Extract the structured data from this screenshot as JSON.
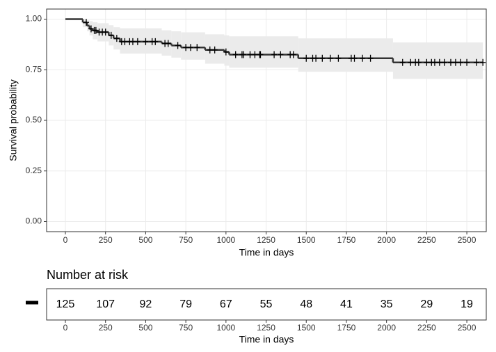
{
  "chart_data": [
    {
      "type": "step",
      "xlabel": "Time in days",
      "ylabel": "Survival probability",
      "color": "#333333",
      "band_color": "#ebebeb",
      "grid": true,
      "x": [
        0,
        108,
        135,
        150,
        170,
        200,
        270,
        300,
        340,
        600,
        660,
        720,
        870,
        990,
        1020,
        1450,
        2040
      ],
      "y": [
        1.0,
        0.984,
        0.968,
        0.952,
        0.944,
        0.936,
        0.92,
        0.905,
        0.889,
        0.88,
        0.87,
        0.86,
        0.848,
        0.838,
        0.825,
        0.807,
        0.786
      ],
      "lower": [
        1.0,
        0.96,
        0.94,
        0.92,
        0.9,
        0.89,
        0.87,
        0.85,
        0.83,
        0.82,
        0.81,
        0.8,
        0.78,
        0.77,
        0.76,
        0.74,
        0.705
      ],
      "upper": [
        1.0,
        1.0,
        0.995,
        0.99,
        0.985,
        0.98,
        0.97,
        0.96,
        0.955,
        0.945,
        0.94,
        0.935,
        0.925,
        0.92,
        0.915,
        0.905,
        0.885
      ],
      "censor_x": [
        130,
        160,
        180,
        190,
        210,
        230,
        250,
        285,
        320,
        350,
        370,
        400,
        420,
        450,
        500,
        540,
        560,
        620,
        640,
        700,
        750,
        780,
        820,
        900,
        930,
        1000,
        1060,
        1100,
        1110,
        1150,
        1180,
        1210,
        1215,
        1300,
        1340,
        1400,
        1420,
        1500,
        1540,
        1560,
        1600,
        1650,
        1700,
        1780,
        1800,
        1850,
        1900,
        2100,
        2150,
        2180,
        2200,
        2250,
        2280,
        2300,
        2330,
        2360,
        2400,
        2430,
        2460,
        2500,
        2560,
        2600
      ],
      "xlim": [
        -117,
        2621
      ],
      "ylim": [
        -0.05,
        1.05
      ],
      "xticks": [
        0,
        250,
        500,
        750,
        1000,
        1250,
        1500,
        1750,
        2000,
        2250,
        2500
      ],
      "yticks": [
        {
          "value": 0,
          "label": "0.00"
        },
        {
          "value": 0.25,
          "label": "0.25"
        },
        {
          "value": 0.5,
          "label": "0.50"
        },
        {
          "value": 0.75,
          "label": "0.75"
        },
        {
          "value": 1,
          "label": "1.00"
        }
      ]
    },
    {
      "type": "risk_table",
      "title": "Number at risk",
      "xlabel": "Time in days",
      "x": [
        0,
        250,
        500,
        750,
        1000,
        1250,
        1500,
        1750,
        2000,
        2250,
        2500
      ],
      "values": [
        125,
        107,
        92,
        79,
        67,
        55,
        48,
        41,
        35,
        29,
        19
      ],
      "xlim": [
        -117,
        2621
      ],
      "xticks": [
        0,
        250,
        500,
        750,
        1000,
        1250,
        1500,
        1750,
        2000,
        2250,
        2500
      ]
    }
  ]
}
